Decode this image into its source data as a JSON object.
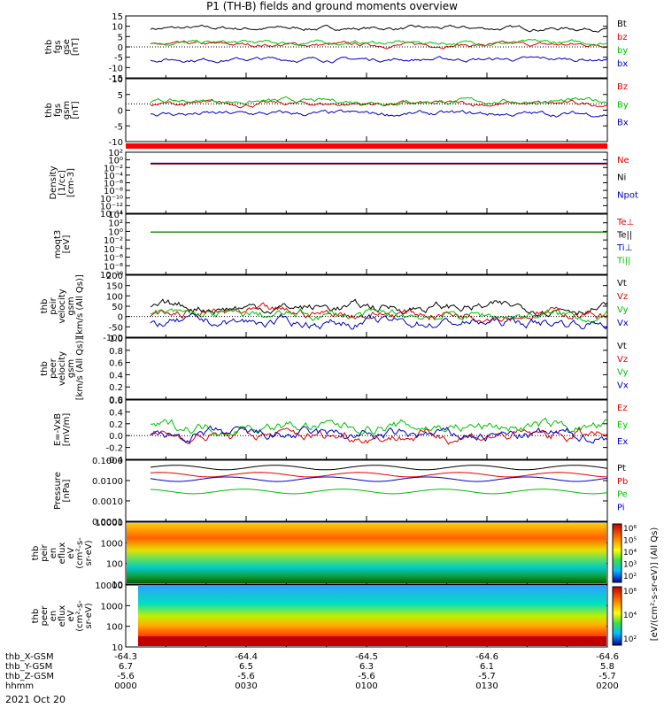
{
  "title": "P1 (TH-B) fields and ground moments overview",
  "date": "2021 Oct 20",
  "colors": {
    "black": "#000000",
    "red": "#e00000",
    "green": "#00c000",
    "blue": "#0000c0",
    "bar": "#ff0000"
  },
  "orbit_labels": [
    "thb_X-GSM",
    "thb_Y-GSM",
    "thb_Z-GSM",
    "hhmm"
  ],
  "orbit_ticks": [
    {
      "x": "-64.3",
      "y": "6.7",
      "z": "-5.6",
      "t": "0000"
    },
    {
      "x": "-64.4",
      "y": "6.5",
      "z": "-5.6",
      "t": "0030"
    },
    {
      "x": "-64.5",
      "y": "6.3",
      "z": "-5.6",
      "t": "0100"
    },
    {
      "x": "-64.6",
      "y": "6.1",
      "z": "-5.7",
      "t": "0130"
    },
    {
      "x": "-64.6",
      "y": "5.8",
      "z": "-5.7",
      "t": "0200"
    }
  ],
  "chart_data": [
    {
      "type": "line",
      "ylabel": [
        "thb",
        "fgs",
        "gse",
        "[nT]"
      ],
      "ylim": [
        -15,
        15
      ],
      "ticks": [
        "15",
        "10",
        "5",
        "0",
        "-5",
        "-10",
        "-15"
      ],
      "series": [
        {
          "name": "Bt",
          "color": "black",
          "level": 9
        },
        {
          "name": "bz",
          "color": "red",
          "level": 1
        },
        {
          "name": "by",
          "color": "green",
          "level": 2
        },
        {
          "name": "bx",
          "color": "blue",
          "level": -6
        }
      ]
    },
    {
      "type": "line",
      "ylabel": [
        "thb",
        "fgs",
        "gsm",
        "[nT]"
      ],
      "ylim": [
        -15,
        10
      ],
      "ticks": [
        "10",
        "5",
        "0",
        "-5",
        "-10"
      ],
      "series": [
        {
          "name": "Bz",
          "color": "red",
          "level": 0
        },
        {
          "name": "By",
          "color": "green",
          "level": 1
        },
        {
          "name": "Bx",
          "color": "blue",
          "level": -4
        }
      ]
    },
    {
      "type": "line",
      "ylabel": [
        "Density",
        "[1/cc]",
        "[cm-3]"
      ],
      "ylim": [
        -14,
        3
      ],
      "log": true,
      "ticks": [
        "10²",
        "10⁰",
        "10⁻²",
        "10⁻⁴",
        "10⁻⁶",
        "10⁻⁸",
        "10⁻¹⁰",
        "10⁻¹²",
        "10⁻¹⁴"
      ],
      "series": [
        {
          "name": "Ne",
          "color": "red",
          "level": 0.5
        },
        {
          "name": "Ni",
          "color": "black",
          "level": 0.7
        },
        {
          "name": "Npot",
          "color": "blue",
          "level": 0.9
        }
      ]
    },
    {
      "type": "line",
      "ylabel": [
        "moqt3",
        "[eV]"
      ],
      "ylim": [
        -10,
        5
      ],
      "log": true,
      "ticks": [
        "10⁴",
        "10²",
        "10⁰",
        "10⁻²",
        "10⁻⁴",
        "10⁻⁶",
        "10⁻⁸",
        "10⁻¹⁰"
      ],
      "series": [
        {
          "name": "Te⊥",
          "color": "red",
          "level": 3.3
        },
        {
          "name": "Te||",
          "color": "black",
          "level": 3.5
        },
        {
          "name": "Ti⊥",
          "color": "blue",
          "level": 3.8
        },
        {
          "name": "Ti||",
          "color": "green",
          "level": 3.6
        }
      ]
    },
    {
      "type": "line",
      "ylabel": [
        "thb",
        "peir",
        "velocity",
        "gsm",
        "[km/s (All Qs)]"
      ],
      "ylim": [
        -100,
        200
      ],
      "ticks": [
        "200",
        "150",
        "100",
        "50",
        "0",
        "-50",
        "-100"
      ],
      "series": [
        {
          "name": "Vt",
          "color": "black",
          "level": 45
        },
        {
          "name": "Vz",
          "color": "red",
          "level": 15
        },
        {
          "name": "Vy",
          "color": "green",
          "level": 5
        },
        {
          "name": "Vx",
          "color": "blue",
          "level": -30
        }
      ]
    },
    {
      "type": "line",
      "ylabel": [
        "thb",
        "peer",
        "velocity",
        "gsm",
        "[km/s (All Qs)]"
      ],
      "ylim": [
        0,
        1
      ],
      "ticks": [
        "1.0",
        "0.8",
        "0.6",
        "0.4",
        "0.2",
        "0.0"
      ],
      "series": [
        {
          "name": "Vt",
          "color": "black"
        },
        {
          "name": "Vz",
          "color": "red"
        },
        {
          "name": "Vy",
          "color": "green"
        },
        {
          "name": "Vx",
          "color": "blue"
        }
      ]
    },
    {
      "type": "line",
      "ylabel": [
        "E=-VxB",
        "[mV/m]"
      ],
      "ylim": [
        -0.4,
        0.6
      ],
      "ticks": [
        "0.6",
        "0.4",
        "0.2",
        "0.0",
        "-0.2",
        "-0.4"
      ],
      "series": [
        {
          "name": "Ez",
          "color": "red",
          "level": 0.0
        },
        {
          "name": "Ey",
          "color": "green",
          "level": 0.15
        },
        {
          "name": "Ex",
          "color": "blue",
          "level": 0.0
        }
      ]
    },
    {
      "type": "line",
      "ylabel": [
        "Pressure",
        "[nPa]"
      ],
      "ylim": [
        -4,
        -1
      ],
      "log": true,
      "ticks": [
        "0.1000",
        "0.0100",
        "0.0010",
        "0.0001"
      ],
      "series": [
        {
          "name": "Pt",
          "color": "black",
          "level": 0.045
        },
        {
          "name": "Pb",
          "color": "red",
          "level": 0.02
        },
        {
          "name": "Pe",
          "color": "green",
          "level": 0.003
        },
        {
          "name": "Pi",
          "color": "blue",
          "level": 0.012
        }
      ]
    },
    {
      "type": "heatmap",
      "ylabel": [
        "thb",
        "peir",
        "en",
        "eflux",
        "eV",
        "(cm²-s-",
        "sr-eV)"
      ],
      "ticks": [
        "10000",
        "1000",
        "100",
        "10"
      ],
      "colorbar": [
        "10⁶",
        "10⁵",
        "10⁴",
        "10³",
        "10²"
      ],
      "colorbar_label": "[eV/(cm²-s-sr-eV)] (All Qs)"
    },
    {
      "type": "heatmap",
      "ylabel": [
        "thb",
        "peer",
        "en",
        "eflux",
        "eV",
        "(cm²-s-",
        "sr-eV)"
      ],
      "ticks": [
        "10000",
        "1000",
        "100",
        "10"
      ],
      "colorbar": [
        "10⁶",
        "10⁴",
        "10²"
      ],
      "colorbar_label": "[eV/(cm²-s-sr-eV)] (All Qs)"
    }
  ]
}
